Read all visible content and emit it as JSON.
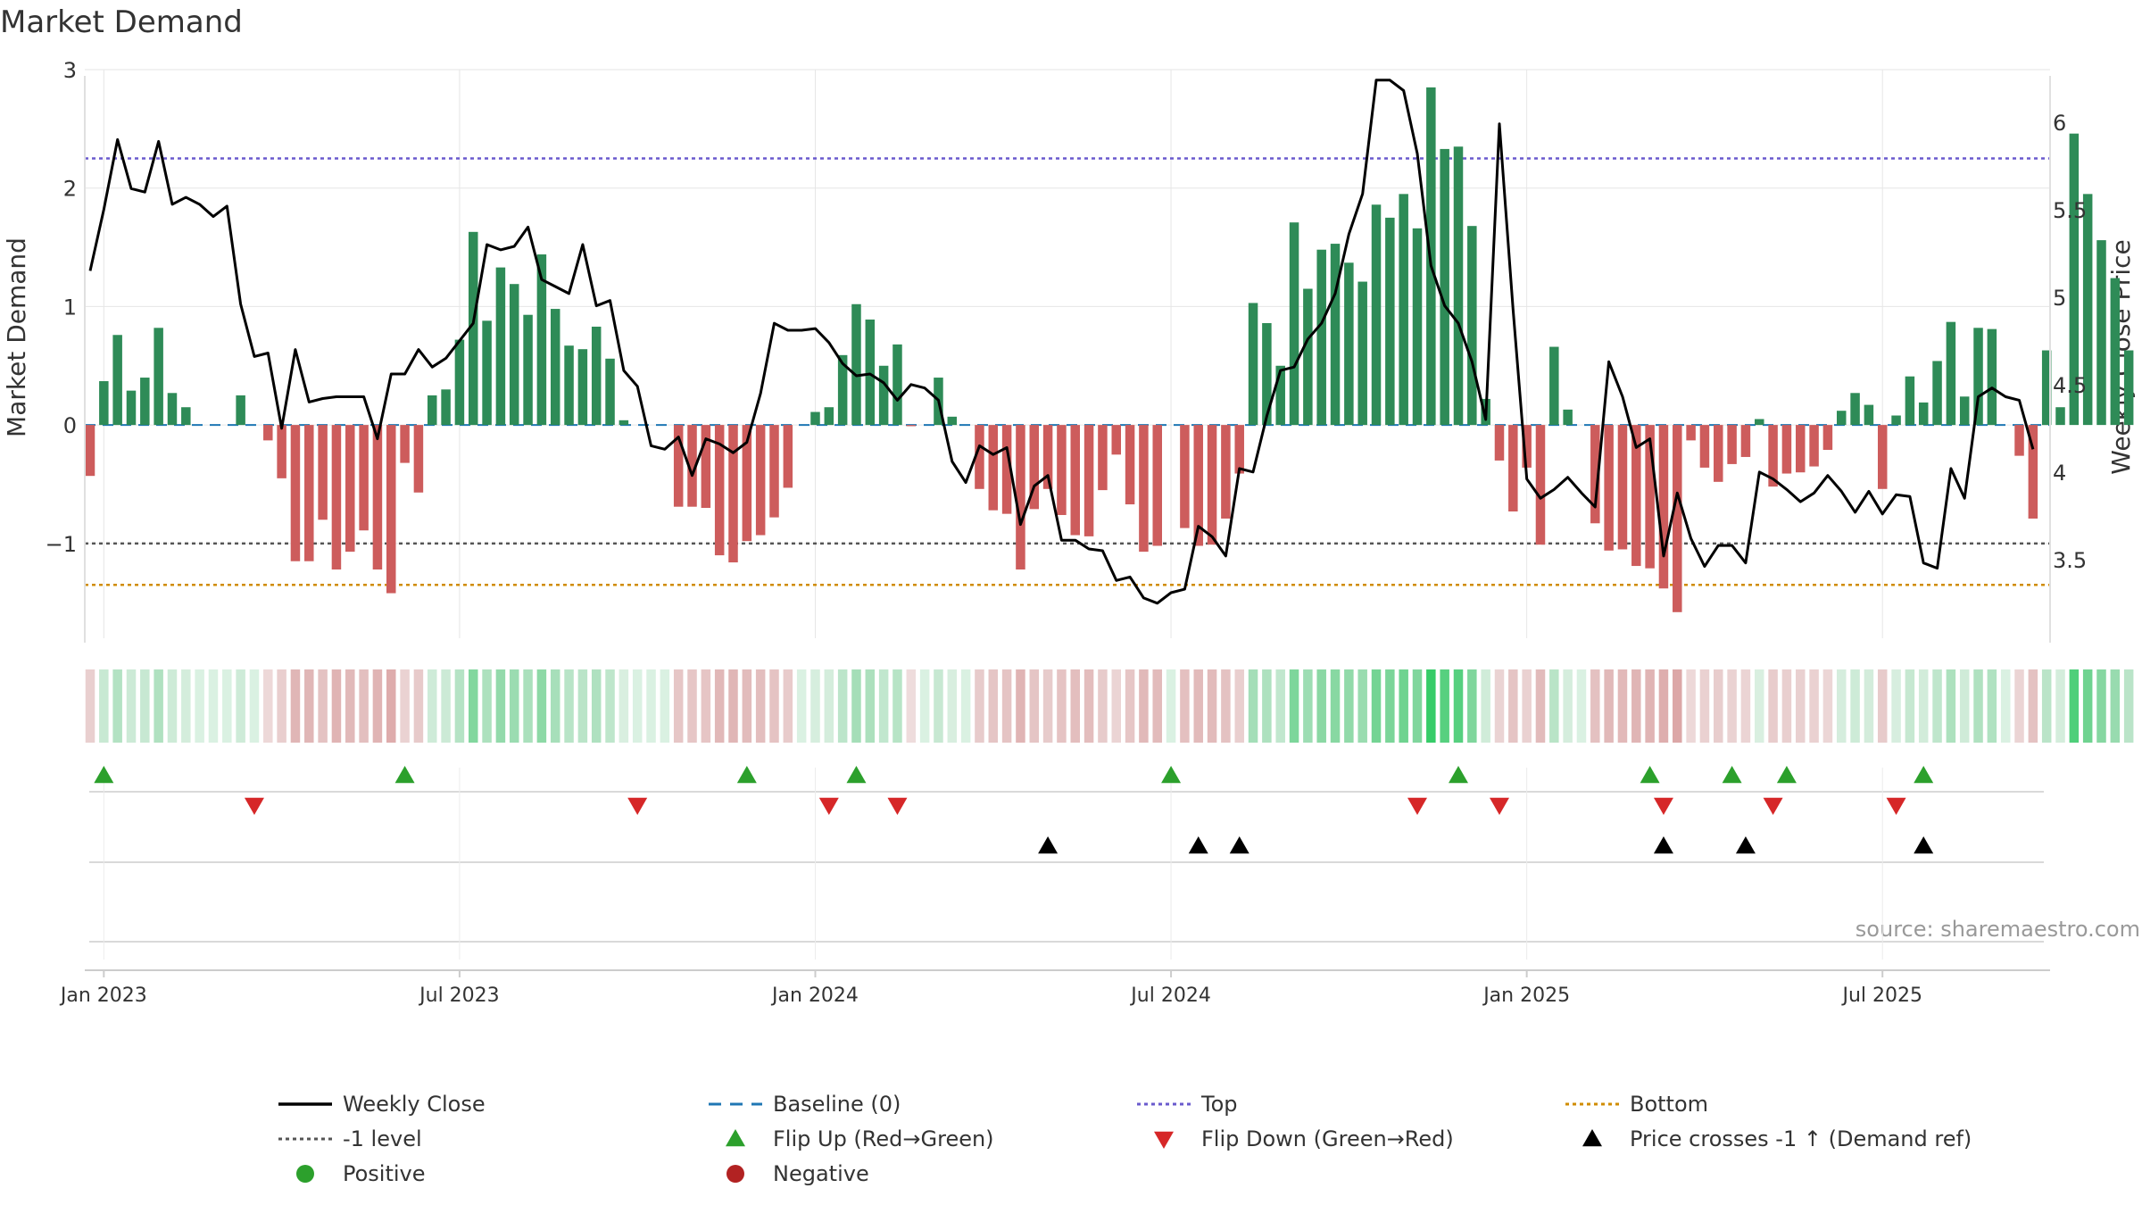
{
  "chart_data": {
    "type": "bar",
    "title": "Market Demand",
    "ylabel": "Market Demand",
    "y2label": "Weekly Close Price",
    "ylim": [
      -1.8,
      3.0
    ],
    "y2lim": [
      3.05,
      6.3
    ],
    "yticks": [
      3,
      2,
      1,
      0,
      -1
    ],
    "ytick_labels": [
      "3",
      "2",
      "1",
      "0",
      "−1"
    ],
    "y2ticks": [
      6,
      5.5,
      5,
      4.5,
      4,
      3.5
    ],
    "y2tick_labels": [
      "6",
      "5.5",
      "5",
      "4.5",
      "4",
      "3.5"
    ],
    "x_start_index": 0,
    "x_end_index": 144,
    "xticks": [
      {
        "index": 1,
        "label": "Jan 2023"
      },
      {
        "index": 27,
        "label": "Jul 2023"
      },
      {
        "index": 53,
        "label": "Jan 2024"
      },
      {
        "index": 79,
        "label": "Jul 2024"
      },
      {
        "index": 105,
        "label": "Jan 2025"
      },
      {
        "index": 131,
        "label": "Jul 2025"
      }
    ],
    "series": [
      {
        "name": "Market Demand",
        "kind": "bar",
        "values": [
          -0.43,
          0.37,
          0.76,
          0.29,
          0.4,
          0.82,
          0.27,
          0.15,
          0.0,
          0.0,
          0.0,
          0.25,
          0.0,
          -0.13,
          -0.45,
          -1.15,
          -1.15,
          -0.8,
          -1.22,
          -1.07,
          -0.89,
          -1.22,
          -1.42,
          -0.32,
          -0.57,
          0.25,
          0.3,
          0.72,
          1.63,
          0.88,
          1.33,
          1.19,
          0.93,
          1.44,
          0.98,
          0.67,
          0.64,
          0.83,
          0.56,
          0.04,
          0.0,
          0.0,
          0.0,
          -0.69,
          -0.69,
          -0.7,
          -1.1,
          -1.16,
          -0.98,
          -0.93,
          -0.78,
          -0.53,
          0.0,
          0.11,
          0.15,
          0.59,
          1.02,
          0.89,
          0.5,
          0.68,
          -0.01,
          0.0,
          0.4,
          0.07,
          0.0,
          -0.54,
          -0.72,
          -0.75,
          -1.22,
          -0.71,
          -0.54,
          -0.76,
          -0.93,
          -0.94,
          -0.55,
          -0.25,
          -0.67,
          -1.07,
          -1.02,
          0.0,
          -0.87,
          -1.02,
          -1.01,
          -0.79,
          -0.41,
          1.03,
          0.86,
          0.5,
          1.71,
          1.15,
          1.48,
          1.53,
          1.37,
          1.21,
          1.86,
          1.75,
          1.95,
          1.66,
          2.85,
          2.33,
          2.35,
          1.68,
          0.22,
          -0.3,
          -0.73,
          -0.36,
          -1.01,
          0.66,
          0.13,
          0.0,
          -0.83,
          -1.06,
          -1.05,
          -1.19,
          -1.21,
          -1.38,
          -1.58,
          -0.13,
          -0.36,
          -0.48,
          -0.33,
          -0.27,
          0.05,
          -0.52,
          -0.41,
          -0.4,
          -0.35,
          -0.21,
          0.12,
          0.27,
          0.17,
          -0.54,
          0.08,
          0.41,
          0.19,
          0.54,
          0.87,
          0.24,
          0.82,
          0.81,
          0.0,
          -0.26,
          -0.79,
          0.63,
          0.15,
          2.46,
          1.95,
          1.56,
          1.24,
          0.63
        ]
      },
      {
        "name": "Weekly Close",
        "kind": "line",
        "axis": "right",
        "values": [
          5.15,
          5.5,
          5.9,
          5.62,
          5.6,
          5.89,
          5.53,
          5.57,
          5.53,
          5.46,
          5.52,
          4.96,
          4.66,
          4.68,
          4.25,
          4.7,
          4.4,
          4.42,
          4.43,
          4.43,
          4.43,
          4.19,
          4.56,
          4.56,
          4.7,
          4.6,
          4.65,
          4.75,
          4.85,
          5.3,
          5.27,
          5.29,
          5.4,
          5.1,
          5.06,
          5.02,
          5.3,
          4.95,
          4.98,
          4.58,
          4.49,
          4.15,
          4.13,
          4.2,
          3.98,
          4.19,
          4.16,
          4.11,
          4.17,
          4.45,
          4.85,
          4.81,
          4.81,
          4.82,
          4.74,
          4.62,
          4.55,
          4.56,
          4.51,
          4.41,
          4.5,
          4.48,
          4.41,
          4.06,
          3.94,
          4.15,
          4.1,
          4.14,
          3.7,
          3.92,
          3.98,
          3.61,
          3.61,
          3.56,
          3.55,
          3.38,
          3.4,
          3.28,
          3.25,
          3.31,
          3.33,
          3.69,
          3.63,
          3.52,
          4.02,
          4.0,
          4.32,
          4.58,
          4.6,
          4.76,
          4.85,
          5.02,
          5.36,
          5.59,
          6.24,
          6.24,
          6.18,
          5.82,
          5.18,
          4.95,
          4.85,
          4.63,
          4.3,
          5.99,
          4.93,
          3.96,
          3.85,
          3.9,
          3.97,
          3.88,
          3.8,
          4.63,
          4.43,
          4.14,
          4.19,
          3.52,
          3.88,
          3.62,
          3.46,
          3.58,
          3.58,
          3.48,
          4.0,
          3.96,
          3.9,
          3.83,
          3.88,
          3.98,
          3.89,
          3.77,
          3.89,
          3.76,
          3.87,
          3.86,
          3.48,
          3.45,
          4.02,
          3.85,
          4.43,
          4.48,
          4.43,
          4.41,
          4.13
        ]
      }
    ],
    "reference_lines": [
      {
        "name": "Baseline (0)",
        "value": 0,
        "color": "#1f77b4",
        "style": "dashed"
      },
      {
        "name": "-1 level",
        "value": -1,
        "color": "#555555",
        "style": "dotted"
      },
      {
        "name": "Top",
        "value": 2.25,
        "color": "#6a5acd",
        "style": "dotted"
      },
      {
        "name": "Bottom",
        "value": -1.35,
        "color": "#d08c00",
        "style": "dotted"
      }
    ],
    "flip_up_indices": [
      1,
      23,
      48,
      56,
      79,
      100,
      114,
      120,
      124,
      134
    ],
    "flip_down_indices": [
      12,
      40,
      54,
      59,
      97,
      103,
      115,
      123,
      132
    ],
    "price_cross_indices": [
      70,
      81,
      84,
      115,
      121,
      134
    ],
    "legend": [
      {
        "label": "Weekly Close",
        "marker": "line",
        "color": "#000000"
      },
      {
        "label": "Baseline (0)",
        "marker": "dashed",
        "color": "#1f77b4"
      },
      {
        "label": "Top",
        "marker": "dotted",
        "color": "#6a5acd"
      },
      {
        "label": "Bottom",
        "marker": "dotted",
        "color": "#d08c00"
      },
      {
        "label": "-1 level",
        "marker": "dotted",
        "color": "#555555"
      },
      {
        "label": "Flip Up (Red→Green)",
        "marker": "triangle-up",
        "color": "#2ca02c"
      },
      {
        "label": "Flip Down (Green→Red)",
        "marker": "triangle-down",
        "color": "#d62728"
      },
      {
        "label": "Price crosses -1 ↑ (Demand ref)",
        "marker": "triangle-up",
        "color": "#000000"
      },
      {
        "label": "Positive",
        "marker": "circle",
        "color": "#2ca02c"
      },
      {
        "label": "Negative",
        "marker": "circle",
        "color": "#b22222"
      }
    ],
    "legend_position": "bottom",
    "source": "source: sharemaestro.com"
  },
  "colors": {
    "positive_bar": "#2e8b57",
    "negative_bar": "#cd5c5c",
    "price_line": "#000000",
    "grid": "#e6e6e6",
    "text": "#333333"
  }
}
